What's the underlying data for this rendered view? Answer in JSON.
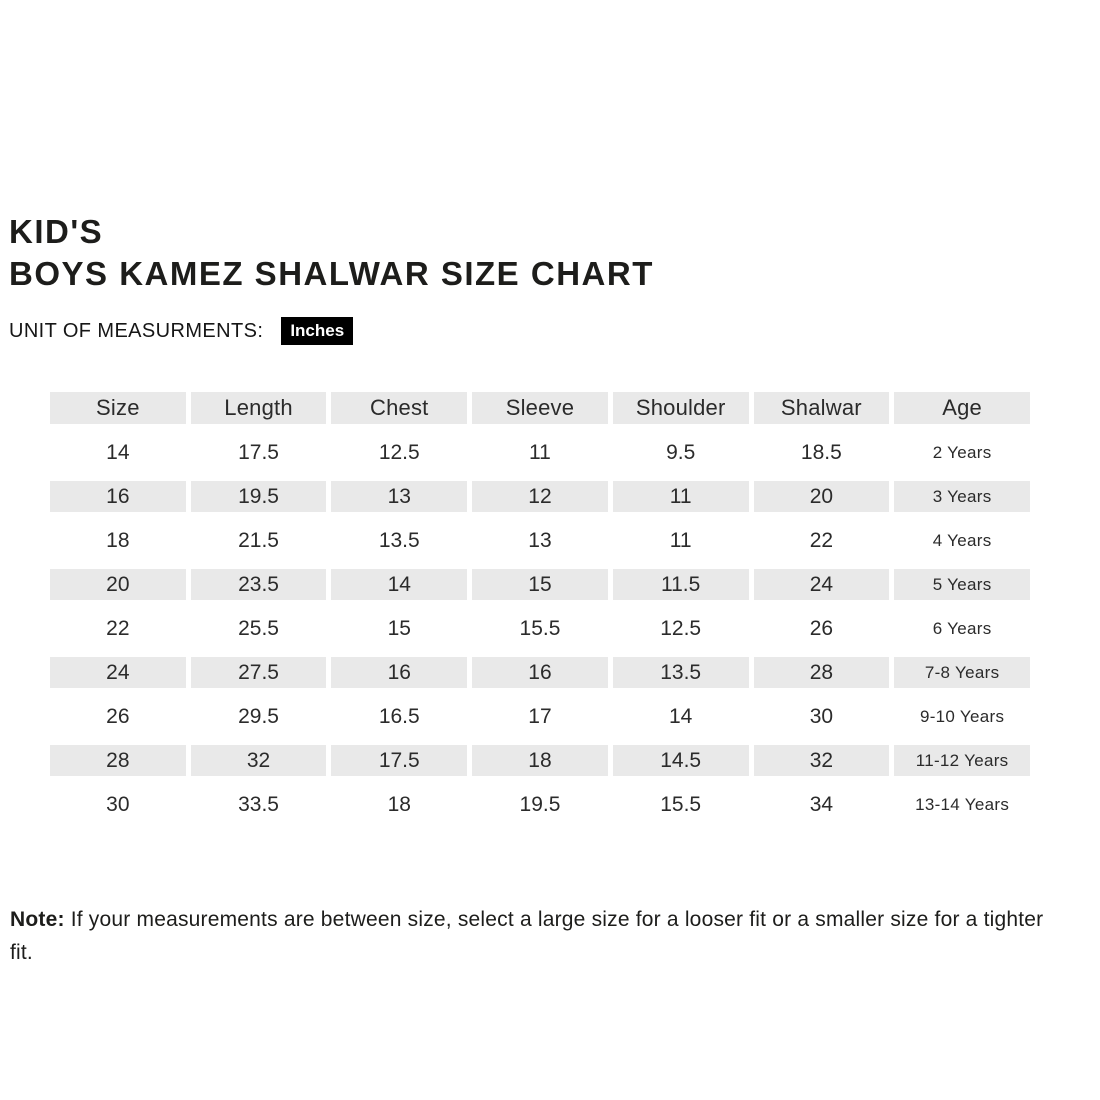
{
  "header": {
    "title_line1": "KID'S",
    "title_line2": "BOYS KAMEZ SHALWAR SIZE CHART",
    "unit_label": "UNIT OF MEASURMENTS:",
    "unit_value": "Inches"
  },
  "chart_data": {
    "type": "table",
    "title": "KID'S BOYS KAMEZ SHALWAR SIZE CHART",
    "unit": "Inches",
    "columns": [
      "Size",
      "Length",
      "Chest",
      "Sleeve",
      "Shoulder",
      "Shalwar",
      "Age"
    ],
    "rows": [
      [
        "14",
        "17.5",
        "12.5",
        "11",
        "9.5",
        "18.5",
        "2 Years"
      ],
      [
        "16",
        "19.5",
        "13",
        "12",
        "11",
        "20",
        "3 Years"
      ],
      [
        "18",
        "21.5",
        "13.5",
        "13",
        "11",
        "22",
        "4 Years"
      ],
      [
        "20",
        "23.5",
        "14",
        "15",
        "11.5",
        "24",
        "5 Years"
      ],
      [
        "22",
        "25.5",
        "15",
        "15.5",
        "12.5",
        "26",
        "6 Years"
      ],
      [
        "24",
        "27.5",
        "16",
        "16",
        "13.5",
        "28",
        "7-8 Years"
      ],
      [
        "26",
        "29.5",
        "16.5",
        "17",
        "14",
        "30",
        "9-10 Years"
      ],
      [
        "28",
        "32",
        "17.5",
        "18",
        "14.5",
        "32",
        "11-12 Years"
      ],
      [
        "30",
        "33.5",
        "18",
        "19.5",
        "15.5",
        "34",
        "13-14 Years"
      ]
    ],
    "striped_row_indexes": [
      1,
      3,
      5,
      7
    ],
    "layout": {
      "header_background": "#e9e9e9",
      "stripe_background": "#e9e9e9",
      "gap_color": "#ffffff"
    }
  },
  "note": {
    "label": "Note:",
    "text": " If your measurements are between size, select a large size for a looser fit or a smaller size for a tighter fit."
  },
  "colors": {
    "page_background": "#ffffff",
    "text": "#1d1d1b",
    "table_text": "#2b2b2b",
    "row_stripe": "#e9e9e9",
    "badge_background": "#000000",
    "badge_text": "#ffffff"
  }
}
